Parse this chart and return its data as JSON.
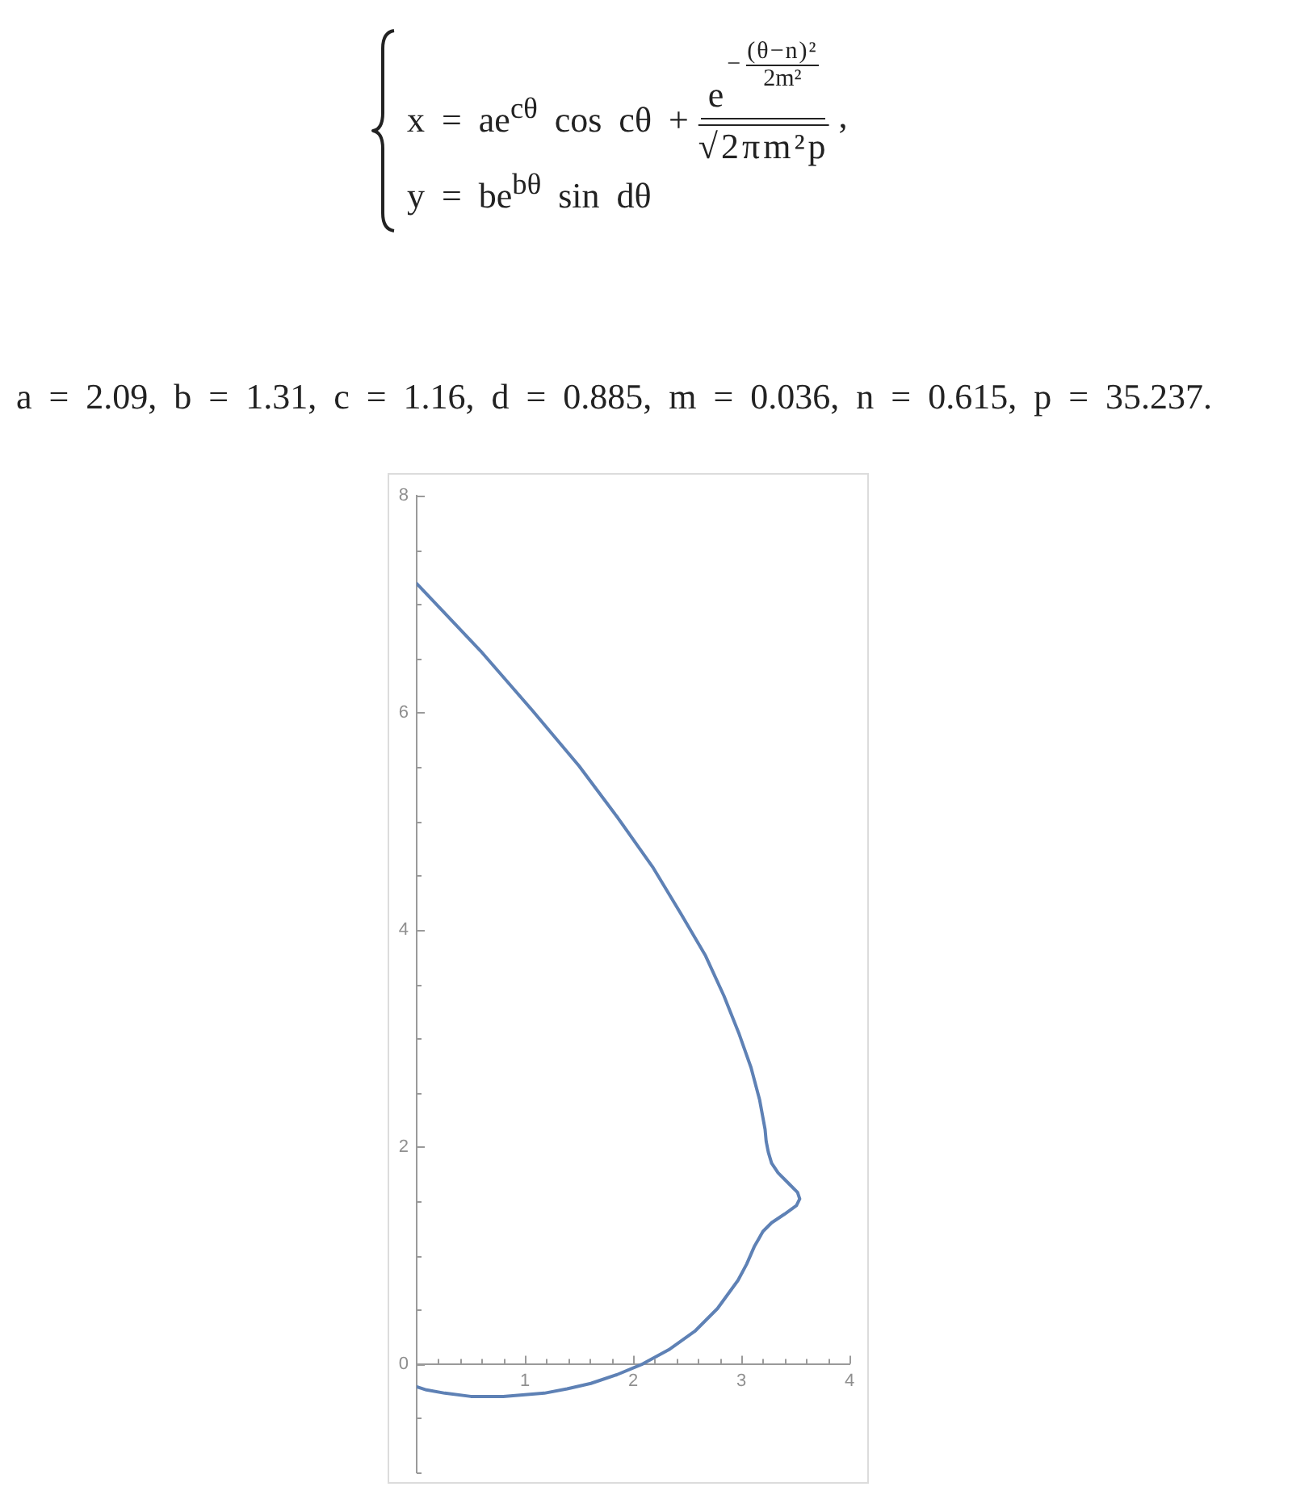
{
  "chart_data": {
    "type": "line",
    "annotations": [
      "x = ae$^{cθ}$ cos cθ +",
      "e",
      "−",
      "(θ−n)²",
      "2m²",
      "√2πm²p",
      ",",
      "y = be$^{bθ}$ sin dθ",
      "a = 2.09, b = 1.31, c = 1.16, d = 0.885, m = 0.036, n = 0.615, p = 35.237."
    ],
    "x": [
      0,
      0.09,
      0.26,
      0.5,
      0.8,
      1.18,
      1.39,
      1.61,
      1.85,
      2.09,
      2.33,
      2.57,
      2.78,
      2.97,
      3.05,
      3.12,
      3.16,
      3.2,
      3.28,
      3.4,
      3.51,
      3.54,
      3.52,
      3.43,
      3.34,
      3.28,
      3.25,
      3.23,
      3.22,
      3.17,
      3.09,
      2.98,
      2.84,
      2.67,
      2.44,
      2.18,
      1.86,
      1.5,
      1.07,
      0.59,
      0
    ],
    "values": [
      -0.21,
      -0.24,
      -0.27,
      -0.3,
      -0.3,
      -0.27,
      -0.23,
      -0.18,
      -0.1,
      0,
      0.13,
      0.3,
      0.51,
      0.77,
      0.92,
      1.08,
      1.15,
      1.22,
      1.3,
      1.38,
      1.46,
      1.52,
      1.58,
      1.67,
      1.76,
      1.85,
      1.95,
      2.05,
      2.16,
      2.43,
      2.73,
      3.04,
      3.39,
      3.76,
      4.15,
      4.58,
      5.03,
      5.51,
      6.02,
      6.57,
      7.19
    ],
    "color": "#5e81b5",
    "xlim": [
      0,
      4
    ],
    "xticks": [
      {
        "value": 0.2,
        "label": null
      },
      {
        "value": 0.4,
        "label": null
      },
      {
        "value": 0.6,
        "label": null
      },
      {
        "value": 0.8,
        "label": null
      },
      1,
      {
        "value": 1.2,
        "label": null
      },
      {
        "value": 1.4,
        "label": null
      },
      {
        "value": 1.6,
        "label": null
      },
      {
        "value": 1.8,
        "label": null
      },
      2,
      {
        "value": 2.2,
        "label": null
      },
      {
        "value": 2.4,
        "label": null
      },
      {
        "value": 2.6,
        "label": null
      },
      {
        "value": 2.8,
        "label": null
      },
      3,
      {
        "value": 3.2,
        "label": null
      },
      {
        "value": 3.4,
        "label": null
      },
      {
        "value": 3.6,
        "label": null
      },
      {
        "value": 3.8,
        "label": null
      },
      4
    ],
    "ylim": [
      -1,
      8
    ],
    "yticks": [
      {
        "value": -1,
        "label": null
      },
      {
        "value": -0.5,
        "label": null
      },
      0,
      {
        "value": 0.5,
        "label": null
      },
      {
        "value": 1,
        "label": null
      },
      {
        "value": 1.5,
        "label": null
      },
      2,
      {
        "value": 2.5,
        "label": null
      },
      {
        "value": 3,
        "label": null
      },
      {
        "value": 3.5,
        "label": null
      },
      4,
      {
        "value": 4.5,
        "label": null
      },
      {
        "value": 5,
        "label": null
      },
      {
        "value": 5.5,
        "label": null
      },
      6,
      {
        "value": 6.5,
        "label": null
      },
      {
        "value": 7,
        "label": null
      },
      {
        "value": 7.5,
        "label": null
      },
      8
    ]
  }
}
